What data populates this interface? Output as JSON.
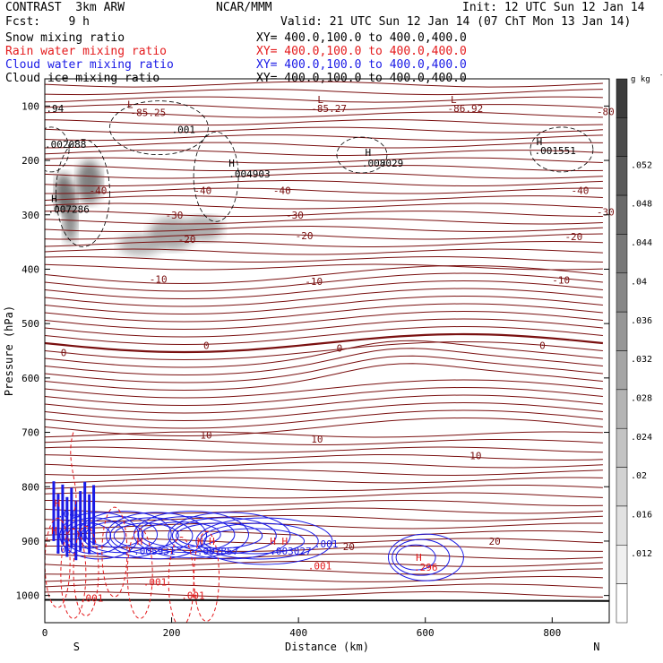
{
  "header": {
    "left_line1": "CONTRAST  3km ARW",
    "center_line1": "NCAR/MMM",
    "right_line1": "Init: 12 UTC Sun 12 Jan 14",
    "left_line2": "Fcst:    9 h",
    "right_line2": "Valid: 21 UTC Sun 12 Jan 14 (07 ChT Mon 13 Jan 14)"
  },
  "fields": [
    {
      "name": "Snow mixing ratio",
      "xy": "",
      "color": "#000000"
    },
    {
      "name": "Rain water mixing ratio",
      "xy": "XY= 400.0,100.0 to 400.0,400.0",
      "color": "#e41a1c"
    },
    {
      "name": "Cloud water mixing ratio",
      "xy": "XY= 400.0,100.0 to 400.0,400.0",
      "color": "#1a1ae6"
    },
    {
      "name": "Cloud ice mixing ratio",
      "xy": "XY= 400.0,100.0 to 400.0,400.0",
      "color": "#000000"
    }
  ],
  "snow_xy": "XY= 400.0,100.0 to 400.0,400.0",
  "chart_data": {
    "type": "contour",
    "xlabel": "Distance (km)",
    "ylabel": "Pressure (hPa)",
    "xlim": [
      0,
      890
    ],
    "ylim": [
      1050,
      50
    ],
    "x_ticks": [
      "0",
      "200",
      "400",
      "600",
      "800"
    ],
    "x_tick_values": [
      0,
      200,
      400,
      600,
      800
    ],
    "y_ticks": [
      "100",
      "200",
      "300",
      "400",
      "500",
      "600",
      "700",
      "800",
      "900",
      "1000"
    ],
    "y_tick_values": [
      100,
      200,
      300,
      400,
      500,
      600,
      700,
      800,
      900,
      1000
    ],
    "endpoints": {
      "left": "S",
      "right": "N"
    },
    "colorbar": {
      "unit": "g kg",
      "unit_exp": "-1",
      "labels": [
        ".012",
        ".016",
        ".02",
        ".024",
        ".028",
        ".032",
        ".036",
        ".04",
        ".044",
        ".048",
        ".052"
      ],
      "values": [
        0.012,
        0.016,
        0.02,
        0.024,
        0.028,
        0.032,
        0.036,
        0.04,
        0.044,
        0.048,
        0.052
      ]
    },
    "temperature_labels": [
      {
        "text": "-80",
        "x": 870,
        "p": 110
      },
      {
        "text": "-40",
        "x": 70,
        "p": 255
      },
      {
        "text": "-40",
        "x": 235,
        "p": 255
      },
      {
        "text": "-40",
        "x": 360,
        "p": 255
      },
      {
        "text": "-40",
        "x": 830,
        "p": 255
      },
      {
        "text": "-30",
        "x": 190,
        "p": 300
      },
      {
        "text": "-30",
        "x": 380,
        "p": 300
      },
      {
        "text": "-30",
        "x": 870,
        "p": 295
      },
      {
        "text": "-20",
        "x": 210,
        "p": 345
      },
      {
        "text": "-20",
        "x": 395,
        "p": 338
      },
      {
        "text": "-20",
        "x": 820,
        "p": 340
      },
      {
        "text": "-10",
        "x": 165,
        "p": 418
      },
      {
        "text": "-10",
        "x": 410,
        "p": 422
      },
      {
        "text": "-10",
        "x": 800,
        "p": 420
      },
      {
        "text": "0",
        "x": 25,
        "p": 553
      },
      {
        "text": "0",
        "x": 250,
        "p": 540
      },
      {
        "text": "0",
        "x": 460,
        "p": 545
      },
      {
        "text": "0",
        "x": 780,
        "p": 540
      },
      {
        "text": "10",
        "x": 245,
        "p": 705
      },
      {
        "text": "10",
        "x": 420,
        "p": 712
      },
      {
        "text": "10",
        "x": 670,
        "p": 743
      },
      {
        "text": "20",
        "x": 470,
        "p": 910
      },
      {
        "text": "20",
        "x": 700,
        "p": 900
      }
    ],
    "extrema_labels": [
      {
        "text": "L",
        "x": 130,
        "p": 97
      },
      {
        "text": "-85.25",
        "x": 135,
        "p": 112
      },
      {
        "text": "L",
        "x": 430,
        "p": 88
      },
      {
        "text": "-85.27",
        "x": 420,
        "p": 104
      },
      {
        "text": "L",
        "x": 640,
        "p": 88
      },
      {
        "text": "-86.92",
        "x": 635,
        "p": 104
      },
      {
        "text": ".94",
        "x": 2,
        "p": 104
      },
      {
        "text": "H",
        "x": 290,
        "p": 205
      },
      {
        "text": ".004903",
        "x": 290,
        "p": 225
      },
      {
        "text": "H",
        "x": 505,
        "p": 185
      },
      {
        "text": ".008029",
        "x": 500,
        "p": 205
      },
      {
        "text": "H",
        "x": 775,
        "p": 165
      },
      {
        "text": ".001551",
        "x": 772,
        "p": 182
      },
      {
        "text": ".002088",
        "x": 0,
        "p": 170
      },
      {
        "text": "H",
        "x": 10,
        "p": 270
      },
      {
        "text": ".007286",
        "x": 5,
        "p": 290
      },
      {
        "text": ".001",
        "x": 200,
        "p": 143
      },
      {
        "text": "H",
        "x": 15,
        "p": 830
      },
      {
        "text": ".049",
        "x": 20,
        "p": 850
      },
      {
        "text": "H",
        "x": 10,
        "p": 880
      },
      {
        "text": ".001",
        "x": 15,
        "p": 915
      },
      {
        "text": "H",
        "x": 145,
        "p": 900
      },
      {
        "text": ".005931",
        "x": 140,
        "p": 918
      },
      {
        "text": "H H",
        "x": 240,
        "p": 900
      },
      {
        "text": ".007857",
        "x": 240,
        "p": 918
      },
      {
        "text": "H H",
        "x": 355,
        "p": 900
      },
      {
        "text": ".003027",
        "x": 355,
        "p": 918
      },
      {
        "text": ".001",
        "x": 425,
        "p": 905
      },
      {
        "text": ".001",
        "x": 415,
        "p": 945
      },
      {
        "text": "H",
        "x": 585,
        "p": 930
      },
      {
        "text": ".296",
        "x": 582,
        "p": 948
      },
      {
        "text": ".001",
        "x": 155,
        "p": 975
      },
      {
        "text": ".001",
        "x": 55,
        "p": 1005
      },
      {
        "text": ".001",
        "x": 215,
        "p": 1000
      }
    ]
  }
}
